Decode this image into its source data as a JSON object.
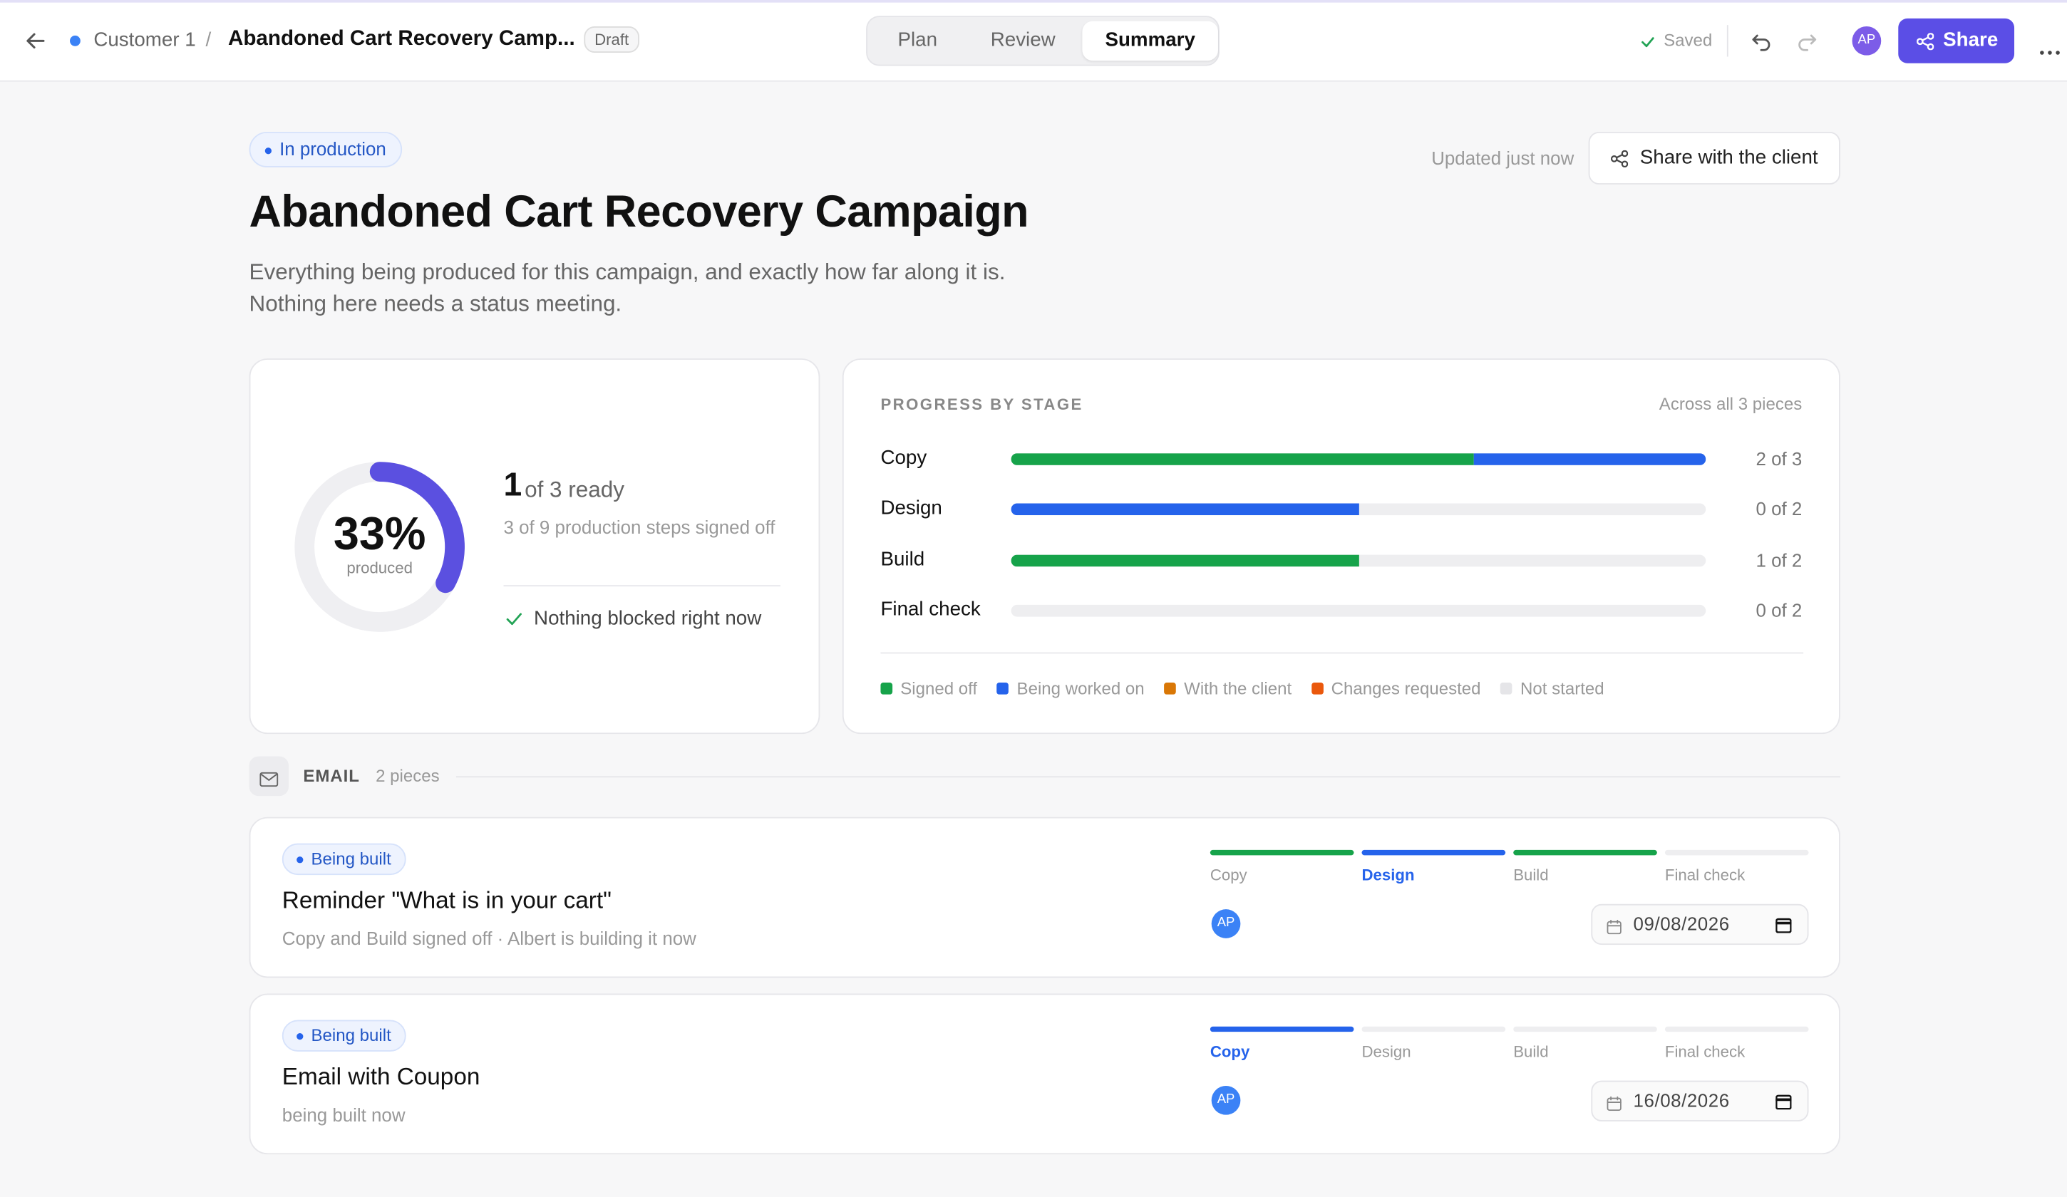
{
  "topbar": {
    "breadcrumb_parent": "Customer 1",
    "separator": "/",
    "breadcrumb_current": "Abandoned Cart Recovery Camp...",
    "status": "Draft",
    "tabs": [
      "Plan",
      "Review",
      "Summary"
    ],
    "active_tab": 2,
    "saved": "Saved",
    "avatar": "AP",
    "share": "Share"
  },
  "header": {
    "badge": "In production",
    "updated": "Updated just now",
    "share_client": "Share with the client",
    "title": "Abandoned Cart Recovery Campaign",
    "description": [
      "Everything being produced for this campaign, and exactly how far along it is.",
      "Nothing here needs a status meeting."
    ]
  },
  "summary": {
    "percent": 33,
    "percent_label": "33%",
    "caption": "produced",
    "ready_count": "1",
    "ready_text": "of 3 ready",
    "steps": "3 of 9 production steps signed off",
    "blocked": "Nothing blocked right now"
  },
  "stages": {
    "title": "PROGRESS BY STAGE",
    "note": "Across all 3 pieces",
    "rows": [
      {
        "name": "Copy",
        "signed_off": 2,
        "in_progress": 1,
        "total": 3,
        "count": "2 of 3"
      },
      {
        "name": "Design",
        "signed_off": 0,
        "in_progress": 1,
        "total": 2,
        "count": "0 of 2"
      },
      {
        "name": "Build",
        "signed_off": 1,
        "in_progress": 0,
        "total": 2,
        "count": "1 of 2"
      },
      {
        "name": "Final check",
        "signed_off": 0,
        "in_progress": 0,
        "total": 2,
        "count": "0 of 2"
      }
    ],
    "colors": {
      "signed_off": "#16a34a",
      "in_progress": "#2563eb",
      "empty": "#eeeef0"
    },
    "legend": [
      {
        "label": "Signed off",
        "color": "#16a34a"
      },
      {
        "label": "Being worked on",
        "color": "#2563eb"
      },
      {
        "label": "With the client",
        "color": "#d97706"
      },
      {
        "label": "Changes requested",
        "color": "#ea580c"
      },
      {
        "label": "Not started",
        "color": "#e5e5e8"
      }
    ]
  },
  "section": {
    "title": "EMAIL",
    "count": "2 pieces"
  },
  "pieces": [
    {
      "badge": "Being built",
      "title": "Reminder \"What is in your cart\"",
      "note": "Copy and Build signed off · Albert is building it now",
      "steps": [
        {
          "label": "Copy",
          "state": "done"
        },
        {
          "label": "Design",
          "state": "active"
        },
        {
          "label": "Build",
          "state": "done"
        },
        {
          "label": "Final check",
          "state": "todo"
        }
      ],
      "avatar": "AP",
      "date": "09/08/2026"
    },
    {
      "badge": "Being built",
      "title": "Email with Coupon",
      "note": "being built now",
      "steps": [
        {
          "label": "Copy",
          "state": "active"
        },
        {
          "label": "Design",
          "state": "todo"
        },
        {
          "label": "Build",
          "state": "todo"
        },
        {
          "label": "Final check",
          "state": "todo"
        }
      ],
      "avatar": "AP",
      "date": "16/08/2026"
    }
  ]
}
